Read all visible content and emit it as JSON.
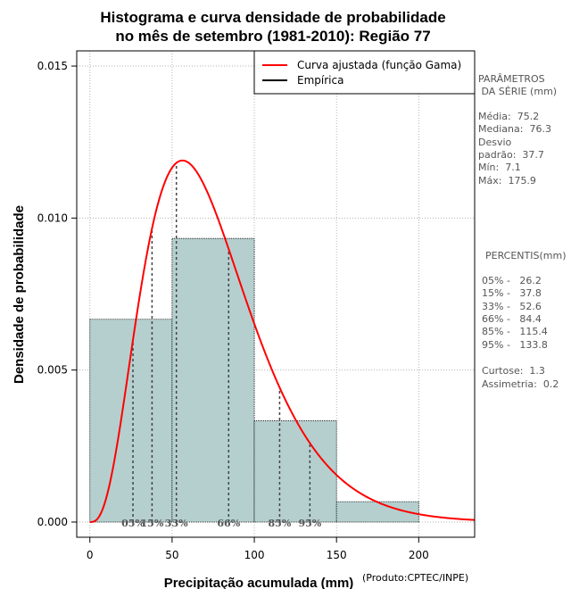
{
  "chart_data": {
    "type": "bar",
    "title_lines": [
      "Histograma e curva densidade de probabilidade",
      "no mês de setembro (1981-2010): Região 77"
    ],
    "xlabel": "Precipitação acumulada (mm)",
    "ylabel": "Densidade de probabilidade",
    "credit": "(Produto:CPTEC/INPE)",
    "xlim": [
      -8,
      234
    ],
    "ylim": [
      -0.0005,
      0.0155
    ],
    "x_ticks": [
      0,
      50,
      100,
      150,
      200
    ],
    "y_ticks": [
      0.0,
      0.005,
      0.01,
      0.015
    ],
    "y_tick_labels": [
      "0.000",
      "0.005",
      "0.010",
      "0.015"
    ],
    "grid": true,
    "bins": [
      {
        "x0": 0,
        "x1": 50,
        "density": 0.00667
      },
      {
        "x0": 50,
        "x1": 100,
        "density": 0.00933
      },
      {
        "x0": 100,
        "x1": 150,
        "density": 0.00333
      },
      {
        "x0": 150,
        "x1": 200,
        "density": 0.00067
      }
    ],
    "gamma_fit": {
      "mean": 75.2,
      "sd": 37.7
    },
    "legend": {
      "position": "top-right",
      "entries": [
        {
          "label": "Curva ajustada (função Gama)",
          "color": "#ff0000"
        },
        {
          "label": "Empírica",
          "color": "#000000"
        }
      ]
    },
    "percentiles": [
      {
        "label": "05%",
        "value": 26.2
      },
      {
        "label": "15%",
        "value": 37.8
      },
      {
        "label": "33%",
        "value": 52.6
      },
      {
        "label": "66%",
        "value": 84.4
      },
      {
        "label": "85%",
        "value": 115.4
      },
      {
        "label": "95%",
        "value": 133.8
      }
    ]
  },
  "side_panel": {
    "params_title": [
      "PARÂMETROS",
      " DA SÉRIE (mm)"
    ],
    "params": [
      "Média:  75.2",
      "Mediana:  76.3",
      "Desvio",
      "padrão:  37.7",
      "Mín:  7.1",
      "Máx:  175.9"
    ],
    "percentis_title": "PERCENTIS(mm)",
    "percentis": [
      "05% -   26.2",
      "15% -   37.8",
      "33% -   52.6",
      "66% -   84.4",
      "85% -   115.4",
      "95% -   133.8"
    ],
    "stats": [
      "Curtose:  1.3",
      "Assimetria:  0.2"
    ]
  },
  "colors": {
    "bar_fill": "#b5cfcf",
    "curve": "#ff0000",
    "grid": "#b3b3b3",
    "percentile_line": "#444444"
  }
}
